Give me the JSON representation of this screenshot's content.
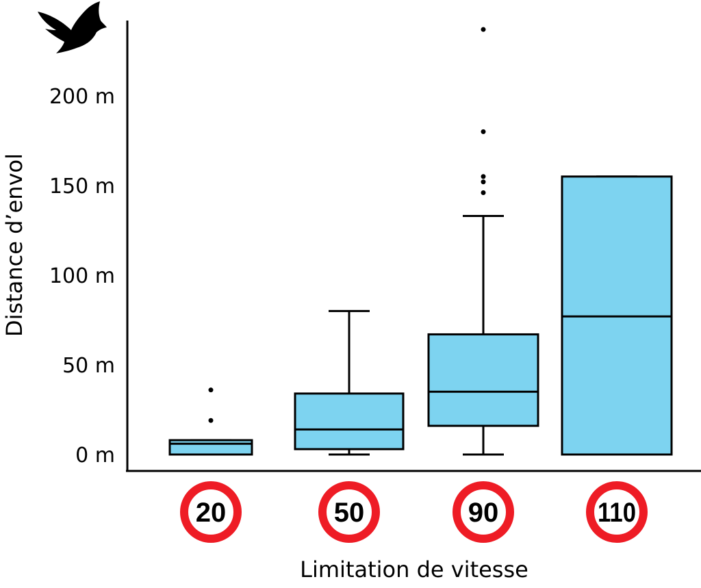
{
  "chart_data": {
    "type": "box",
    "categories": [
      "20",
      "50",
      "90",
      "110"
    ],
    "xlabel": "Limitation de vitesse",
    "ylabel": "Distance d’envol",
    "ylim": [
      -10,
      240
    ],
    "yticks": [
      {
        "value": 0,
        "label": "0 m"
      },
      {
        "value": 50,
        "label": "50 m"
      },
      {
        "value": 100,
        "label": "100 m"
      },
      {
        "value": 150,
        "label": "150 m"
      },
      {
        "value": 200,
        "label": "200 m"
      }
    ],
    "boxes": [
      {
        "category": "20",
        "whisker_low": 0,
        "q1": 0,
        "median": 6,
        "q3": 8,
        "whisker_high": 8,
        "outliers": [
          19,
          36
        ]
      },
      {
        "category": "50",
        "whisker_low": 0,
        "q1": 3,
        "median": 14,
        "q3": 34,
        "whisker_high": 80,
        "outliers": []
      },
      {
        "category": "90",
        "whisker_low": 0,
        "q1": 16,
        "median": 35,
        "q3": 67,
        "whisker_high": 133,
        "outliers": [
          146,
          152,
          155,
          180,
          237
        ]
      },
      {
        "category": "110",
        "whisker_low": 0,
        "q1": 0,
        "median": 77,
        "q3": 155,
        "whisker_high": 155,
        "outliers": []
      }
    ],
    "grid": false,
    "legend": "none",
    "box_color": "#7dd3f0",
    "line_color": "#000000",
    "sign_ring_color": "#ee1c25",
    "icon": "bird-silhouette-icon"
  }
}
